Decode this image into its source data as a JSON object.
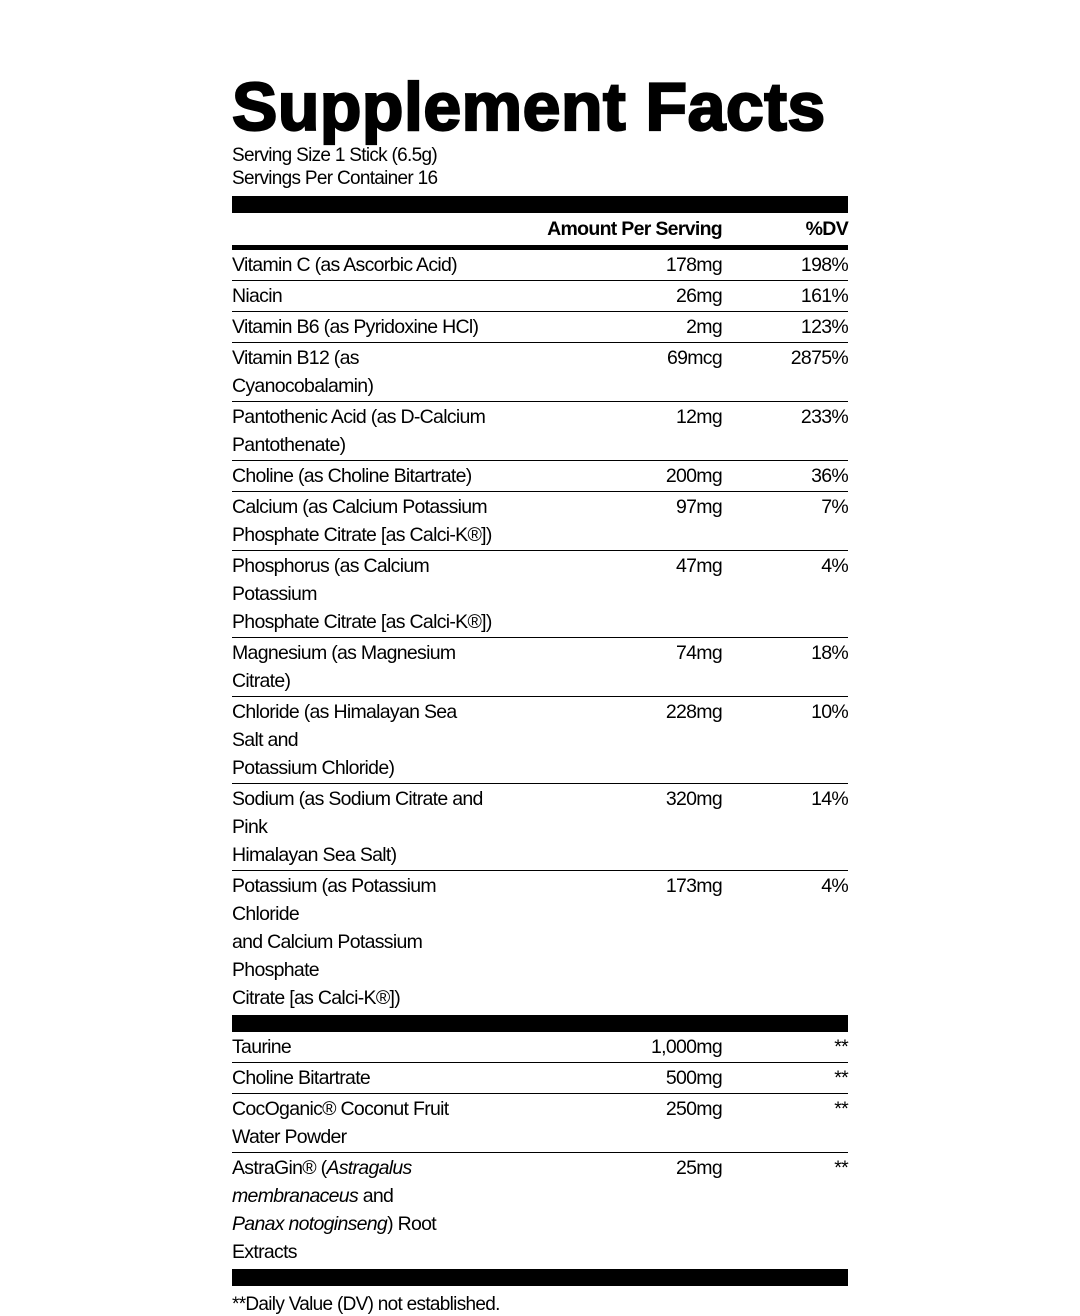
{
  "title": "Supplement Facts",
  "serving_size": "Serving Size 1 Stick (6.5g)",
  "servings_per_container": "Servings Per Container 16",
  "header": {
    "amount": "Amount Per Serving",
    "dv": "%DV"
  },
  "nutrients": [
    {
      "name": "Vitamin C (as Ascorbic Acid)",
      "amount": "178mg",
      "dv": "198%"
    },
    {
      "name": "Niacin",
      "amount": "26mg",
      "dv": "161%"
    },
    {
      "name": "Vitamin B6 (as Pyridoxine HCl)",
      "amount": "2mg",
      "dv": "123%"
    },
    {
      "name": "Vitamin B12 (as Cyanocobalamin)",
      "amount": "69mcg",
      "dv": "2875%"
    },
    {
      "name": "Pantothenic Acid (as D-Calcium\nPantothenate)",
      "amount": "12mg",
      "dv": "233%"
    },
    {
      "name": "Choline (as Choline Bitartrate)",
      "amount": "200mg",
      "dv": "36%"
    },
    {
      "name": "Calcium (as Calcium Potassium\nPhosphate Citrate [as Calci-K®])",
      "amount": "97mg",
      "dv": "7%"
    },
    {
      "name": "Phosphorus (as Calcium Potassium\nPhosphate Citrate [as Calci-K®])",
      "amount": "47mg",
      "dv": "4%"
    },
    {
      "name": "Magnesium (as Magnesium Citrate)",
      "amount": "74mg",
      "dv": "18%"
    },
    {
      "name": "Chloride (as Himalayan Sea Salt and\nPotassium Chloride)",
      "amount": "228mg",
      "dv": "10%"
    },
    {
      "name": "Sodium (as Sodium Citrate and Pink\nHimalayan Sea Salt)",
      "amount": "320mg",
      "dv": "14%"
    },
    {
      "name": "Potassium (as Potassium Chloride\nand Calcium Potassium Phosphate\nCitrate [as Calci-K®])",
      "amount": "173mg",
      "dv": "4%"
    }
  ],
  "other": [
    {
      "name": "Taurine",
      "amount": "1,000mg",
      "dv": "**"
    },
    {
      "name": "Choline Bitartrate",
      "amount": "500mg",
      "dv": "**"
    },
    {
      "name": "CocOganic® Coconut Fruit Water Powder",
      "amount": "250mg",
      "dv": "**"
    }
  ],
  "astragin": {
    "prefix": "AstraGin® (",
    "italic1": "Astragalus membranaceus",
    "mid": " and",
    "italic2": "Panax notoginseng",
    "suffix": ") Root Extracts",
    "amount": "25mg",
    "dv": "**"
  },
  "footnote": "**Daily Value (DV) not established."
}
